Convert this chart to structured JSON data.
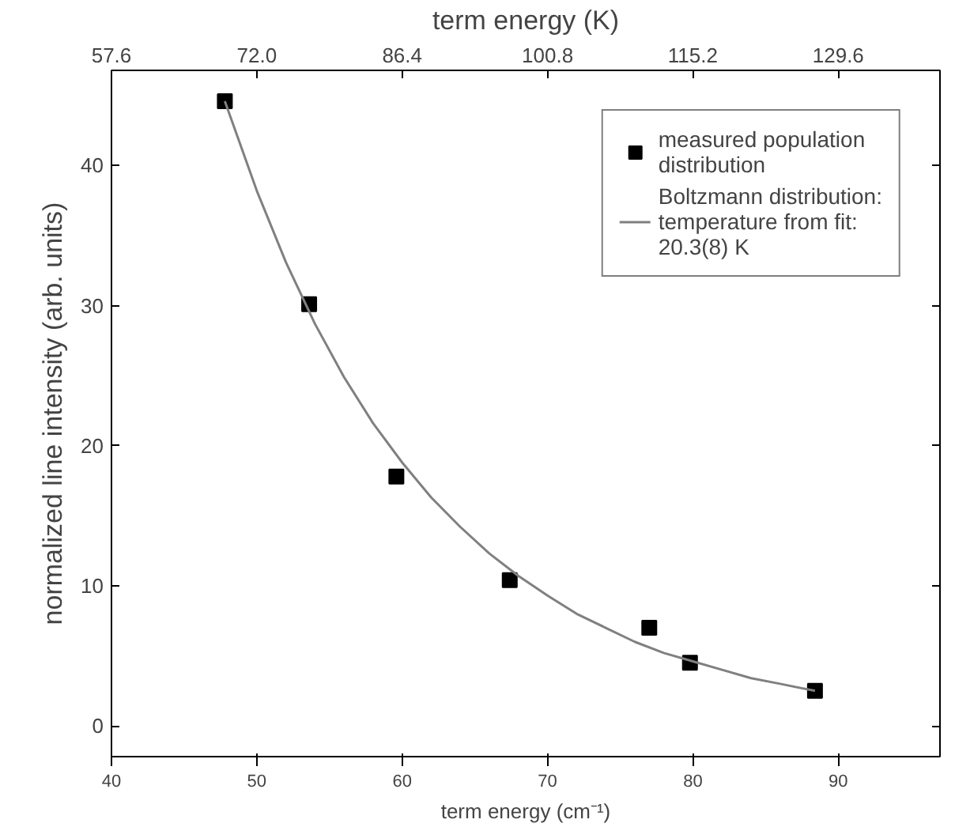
{
  "chart_data": {
    "type": "scatter",
    "xlabel": "term energy (cm⁻¹)",
    "x2label": "term energy (K)",
    "ylabel": "normalized line intensity (arb. units)",
    "xlim": [
      40,
      97
    ],
    "xticks": [
      40,
      50,
      60,
      70,
      80,
      90
    ],
    "x2lim": [
      57.6,
      139.68
    ],
    "x2ticks": [
      57.6,
      {
        "value": 72,
        "label": "72.0"
      },
      86.4,
      100.8,
      115.2,
      129.6
    ],
    "ylim": [
      -2.2,
      46.8
    ],
    "yticks": [
      0,
      10,
      20,
      30,
      40
    ],
    "grid": false,
    "legend": "top right",
    "series": [
      {
        "name": "measured population distribution",
        "marker": "square",
        "color": "#000000",
        "x": [
          47.8,
          53.6,
          59.6,
          67.4,
          77.0,
          79.8,
          88.4
        ],
        "values": [
          44.6,
          30.1,
          17.8,
          10.4,
          7.0,
          4.5,
          2.5
        ]
      },
      {
        "name": "Boltzmann distribution: temperature from fit: 20.3(8) K",
        "type": "line",
        "color": "#808080",
        "x": [
          47.8,
          50,
          52,
          54,
          56,
          58,
          60,
          62,
          64,
          66,
          68,
          70,
          72,
          74,
          76,
          78,
          80,
          82,
          84,
          86,
          88.4
        ],
        "values": [
          44.6,
          38.2,
          33.1,
          28.7,
          24.9,
          21.6,
          18.8,
          16.3,
          14.2,
          12.3,
          10.7,
          9.3,
          8.0,
          7.0,
          6.0,
          5.2,
          4.6,
          4.0,
          3.4,
          3.0,
          2.5
        ]
      }
    ]
  }
}
